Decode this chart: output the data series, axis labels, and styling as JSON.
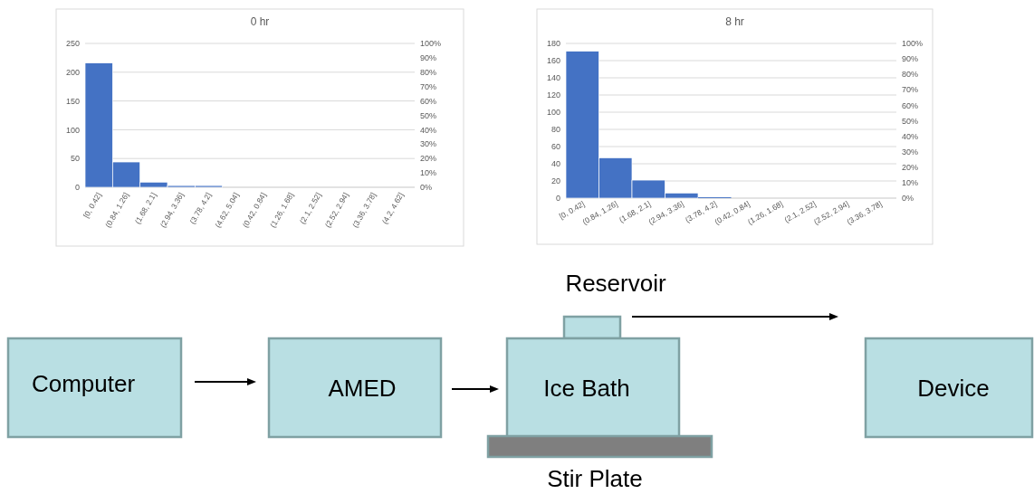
{
  "chart_data": [
    {
      "type": "bar",
      "title": "0 hr",
      "categories": [
        "[0, 0.42]",
        "(0.84, 1.26]",
        "(1.68, 2.1]",
        "(2.94, 3.36]",
        "(3.78, 4.2]",
        "(4.62, 5.04]",
        "(0.42, 0.84]",
        "(1.26, 1.68]",
        "(2.1, 2.52]",
        "(2.52, 2.94]",
        "(3.36, 3.78]",
        "(4.2, 4.62]"
      ],
      "values": [
        216,
        44,
        9,
        3,
        3,
        0,
        0,
        0,
        0,
        0,
        0,
        0
      ],
      "color": "#4472c4",
      "ylim": [
        0,
        250
      ],
      "yticks": [
        0,
        50,
        100,
        150,
        200,
        250
      ],
      "y2lim": [
        0,
        100
      ],
      "y2ticks": [
        {
          "value": 0,
          "label": "0%"
        },
        {
          "value": 10,
          "label": "10%"
        },
        {
          "value": 20,
          "label": "20%"
        },
        {
          "value": 30,
          "label": "30%"
        },
        {
          "value": 40,
          "label": "40%"
        },
        {
          "value": 50,
          "label": "50%"
        },
        {
          "value": 60,
          "label": "60%"
        },
        {
          "value": 70,
          "label": "70%"
        },
        {
          "value": 80,
          "label": "80%"
        },
        {
          "value": 90,
          "label": "90%"
        },
        {
          "value": 100,
          "label": "100%"
        }
      ],
      "grid": "y"
    },
    {
      "type": "bar",
      "title": "8 hr",
      "categories": [
        "[0, 0.42]",
        "(0.84, 1.26]",
        "(1.68, 2.1]",
        "(2.94, 3.36]",
        "(3.78, 4.2]",
        "(0.42, 0.84]",
        "(1.26, 1.68]",
        "(2.1, 2.52]",
        "(2.52, 2.94]",
        "(3.36, 3.78]"
      ],
      "values": [
        171,
        47,
        21,
        6,
        1,
        0,
        0,
        0,
        0,
        0
      ],
      "color": "#4472c4",
      "ylim": [
        0,
        180
      ],
      "yticks": [
        0,
        20,
        40,
        60,
        80,
        100,
        120,
        140,
        160,
        180
      ],
      "y2lim": [
        0,
        100
      ],
      "y2ticks": [
        {
          "value": 0,
          "label": "0%"
        },
        {
          "value": 10,
          "label": "10%"
        },
        {
          "value": 20,
          "label": "20%"
        },
        {
          "value": 30,
          "label": "30%"
        },
        {
          "value": 40,
          "label": "40%"
        },
        {
          "value": 50,
          "label": "50%"
        },
        {
          "value": 60,
          "label": "60%"
        },
        {
          "value": 70,
          "label": "70%"
        },
        {
          "value": 80,
          "label": "80%"
        },
        {
          "value": 90,
          "label": "90%"
        },
        {
          "value": 100,
          "label": "100%"
        }
      ],
      "grid": "y"
    },
    {
      "type": "other",
      "annotations": [
        "Reservoir",
        "Computer",
        "AMED",
        "Ice Bath",
        "Device",
        "Stir Plate"
      ]
    }
  ]
}
